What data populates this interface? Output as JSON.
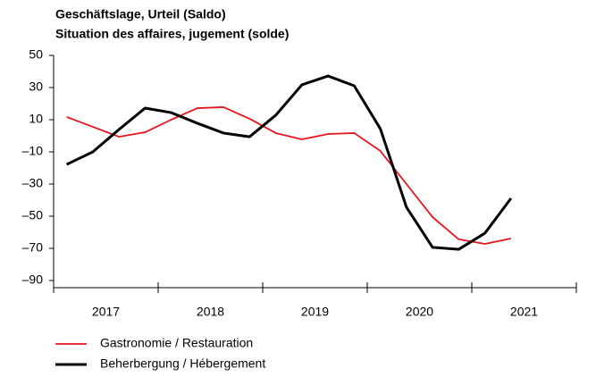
{
  "chart_data": {
    "type": "line",
    "title": "Geschäftslage, Urteil (Saldo)",
    "subtitle": "Situation des affaires, jugement (solde)",
    "x": [
      2017.125,
      2017.375,
      2017.625,
      2017.875,
      2018.125,
      2018.375,
      2018.625,
      2018.875,
      2019.125,
      2019.375,
      2019.625,
      2019.875,
      2020.125,
      2020.375,
      2020.625,
      2020.875,
      2021.125,
      2021.375
    ],
    "series": [
      {
        "name": "Gastronomie / Restauration",
        "color": "#e8141c",
        "values": [
          11.7,
          5.6,
          -0.6,
          2.2,
          10,
          17.2,
          17.8,
          10.6,
          1.7,
          -2.2,
          1.1,
          1.7,
          -9.4,
          -30,
          -50.6,
          -64.4,
          -67.2,
          -63.9
        ]
      },
      {
        "name": "Beherbergung / Hébergement",
        "color": "#000000",
        "values": [
          -17.8,
          -10,
          3.9,
          17.2,
          14.4,
          7.8,
          1.7,
          -0.6,
          12.8,
          31.7,
          37.2,
          31.1,
          4.4,
          -44.4,
          -69.4,
          -70.6,
          -60.6,
          -38.9
        ]
      }
    ],
    "xlim": [
      2017,
      2022
    ],
    "xticks": [
      2017,
      2018,
      2019,
      2020,
      2021,
      2022
    ],
    "year_labels": [
      2017,
      2018,
      2019,
      2020,
      2021
    ],
    "ylim": [
      -90,
      50
    ],
    "yticks": [
      50,
      30,
      10,
      {
        "value": -10,
        "label": "–10"
      },
      {
        "value": -30,
        "label": "–30"
      },
      {
        "value": -50,
        "label": "–50"
      },
      {
        "value": -70,
        "label": "–70"
      },
      {
        "value": -90,
        "label": "–90"
      }
    ]
  }
}
